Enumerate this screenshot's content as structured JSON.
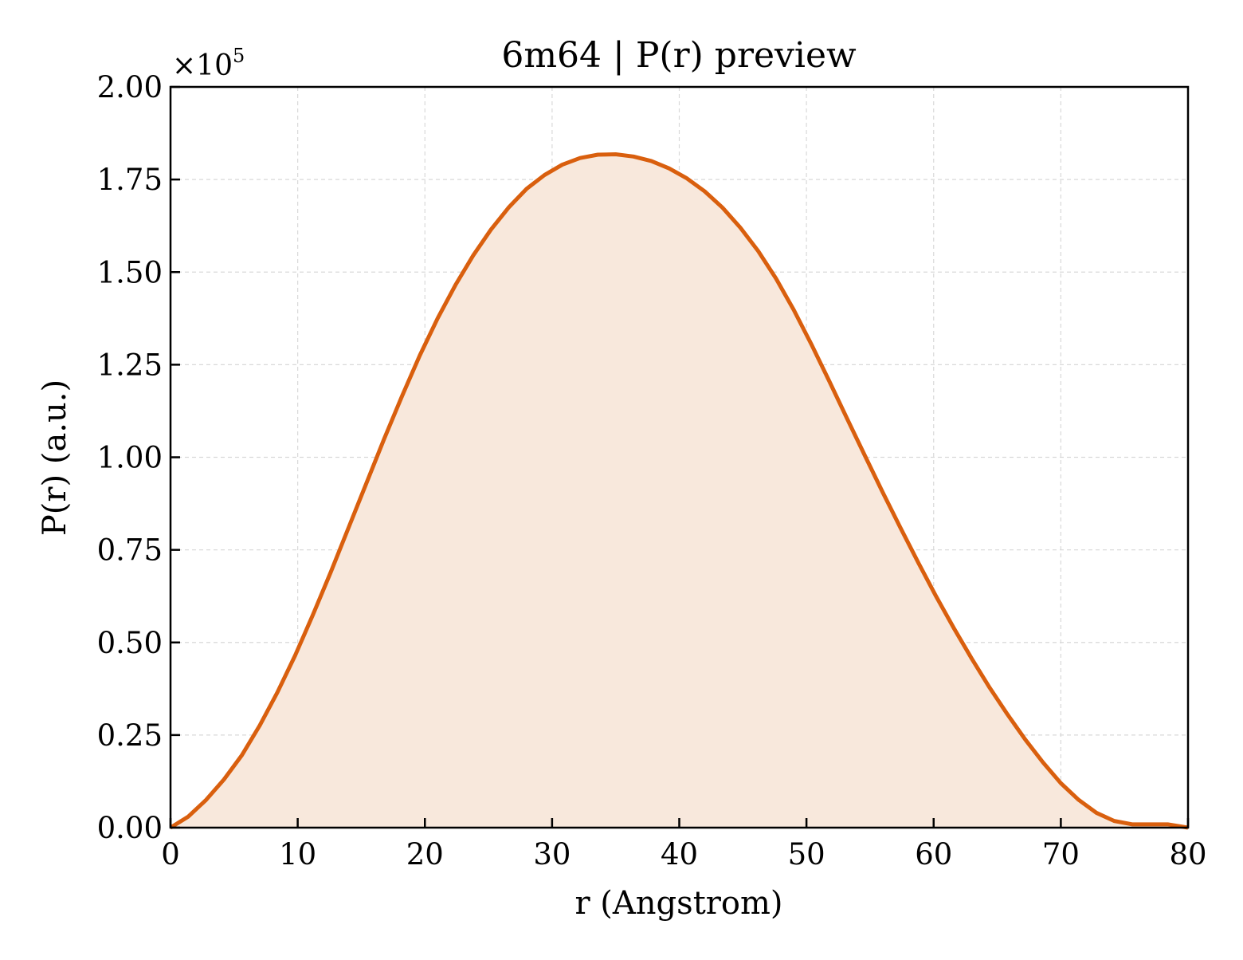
{
  "chart_data": {
    "type": "area",
    "title": "6m64 | P(r) preview",
    "xlabel": "r (Angstrom)",
    "ylabel": "P(r) (a.u.)",
    "y_multiplier": "×10",
    "y_multiplier_exponent": "5",
    "xlim": [
      0,
      80
    ],
    "ylim": [
      0,
      2.0
    ],
    "x_ticks": [
      0,
      10,
      20,
      30,
      40,
      50,
      60,
      70,
      80
    ],
    "x_tick_labels": [
      "0",
      "10",
      "20",
      "30",
      "40",
      "50",
      "60",
      "70",
      "80"
    ],
    "y_ticks": [
      0,
      0.25,
      0.5,
      0.75,
      1.0,
      1.25,
      1.5,
      1.75,
      2.0
    ],
    "y_tick_labels": [
      "0.00",
      "0.25",
      "0.50",
      "0.75",
      "1.00",
      "1.25",
      "1.50",
      "1.75",
      "2.00"
    ],
    "grid": true,
    "line_color": "#d95f0e",
    "fill_color": "#f8e8dc",
    "series": [
      {
        "x": [
          0,
          1.4,
          2.8,
          4.2,
          5.6,
          7.0,
          8.4,
          9.8,
          11.2,
          12.6,
          14.0,
          15.4,
          16.8,
          18.2,
          19.6,
          21.0,
          22.4,
          23.8,
          25.2,
          26.6,
          28.0,
          29.4,
          30.8,
          32.2,
          33.6,
          35.0,
          36.4,
          37.8,
          39.2,
          40.6,
          42.0,
          43.4,
          44.8,
          46.2,
          47.6,
          49.0,
          50.4,
          51.8,
          53.2,
          54.6,
          56.0,
          57.4,
          58.8,
          60.2,
          61.6,
          63.0,
          64.4,
          65.8,
          67.2,
          68.6,
          70.0,
          71.4,
          72.8,
          74.2,
          75.6,
          77.0,
          78.4,
          80.0
        ],
        "values": [
          0.0,
          0.03,
          0.075,
          0.13,
          0.195,
          0.275,
          0.365,
          0.465,
          0.575,
          0.69,
          0.81,
          0.93,
          1.05,
          1.165,
          1.275,
          1.375,
          1.465,
          1.545,
          1.615,
          1.675,
          1.725,
          1.762,
          1.79,
          1.808,
          1.817,
          1.818,
          1.812,
          1.8,
          1.78,
          1.753,
          1.718,
          1.674,
          1.62,
          1.557,
          1.483,
          1.398,
          1.304,
          1.205,
          1.104,
          1.004,
          0.905,
          0.809,
          0.715,
          0.624,
          0.538,
          0.456,
          0.378,
          0.306,
          0.238,
          0.176,
          0.12,
          0.075,
          0.04,
          0.018,
          0.009,
          0.009,
          0.009,
          0.0
        ]
      }
    ]
  }
}
